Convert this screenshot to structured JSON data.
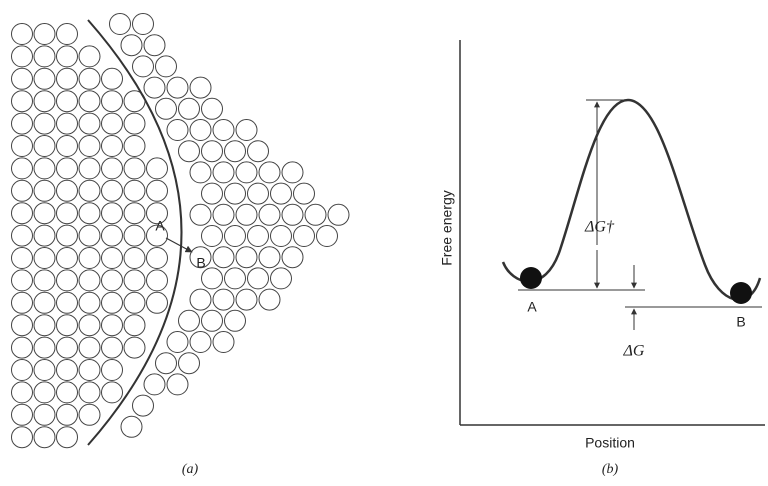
{
  "panel_a": {
    "label_a": "A",
    "label_b": "B",
    "caption": "(a)"
  },
  "panel_b": {
    "y_axis_label": "Free energy",
    "x_axis_label": "Position",
    "barrier_label": "ΔG†",
    "delta_label": "ΔG",
    "state_a": "A",
    "state_b": "B",
    "caption": "(b)"
  }
}
